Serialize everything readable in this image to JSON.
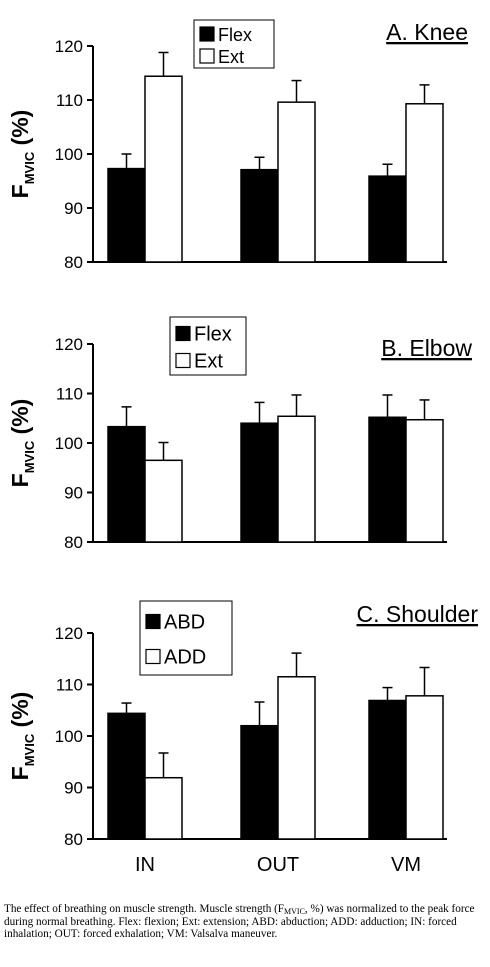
{
  "figure": {
    "colors": {
      "bar_dark": "#000000",
      "bar_light": "#ffffff",
      "axis": "#000000",
      "background": "#ffffff"
    },
    "charts": [
      {
        "type": "bar",
        "title": "A. Knee",
        "ylabel": {
          "main": "F",
          "sub": "MVIC",
          "unit": " (%)"
        },
        "ylim": [
          80,
          120
        ],
        "yticks": [
          80,
          90,
          100,
          110,
          120
        ],
        "categories": [
          "IN",
          "OUT",
          "VM"
        ],
        "show_xticklabels": false,
        "legend_placement": "top-center",
        "grid": false,
        "series": [
          {
            "name": "Flex",
            "color": "#000000",
            "values": [
              97.3,
              97.1,
              95.9
            ],
            "errors": [
              2.7,
              2.3,
              2.2
            ]
          },
          {
            "name": "Ext",
            "color": "#ffffff",
            "values": [
              114.4,
              109.6,
              109.3
            ],
            "errors": [
              4.4,
              4.0,
              3.5
            ]
          }
        ]
      },
      {
        "type": "bar",
        "title": "B. Elbow",
        "ylabel": {
          "main": "F",
          "sub": "MVIC",
          "unit": " (%)"
        },
        "ylim": [
          80,
          120
        ],
        "yticks": [
          80,
          90,
          100,
          110,
          120
        ],
        "categories": [
          "IN",
          "OUT",
          "VM"
        ],
        "show_xticklabels": false,
        "legend_placement": "top-left",
        "grid": false,
        "series": [
          {
            "name": "Flex",
            "color": "#000000",
            "values": [
              103.3,
              104.0,
              105.2
            ],
            "errors": [
              4.0,
              4.2,
              4.5
            ]
          },
          {
            "name": "Ext",
            "color": "#ffffff",
            "values": [
              96.5,
              105.4,
              104.7
            ],
            "errors": [
              3.6,
              4.3,
              4.0
            ]
          }
        ]
      },
      {
        "type": "bar",
        "title": "C. Shoulder",
        "ylabel": {
          "main": "F",
          "sub": "MVIC",
          "unit": " (%)"
        },
        "ylim": [
          80,
          120
        ],
        "yticks": [
          80,
          90,
          100,
          110,
          120
        ],
        "categories": [
          "IN",
          "OUT",
          "VM"
        ],
        "show_xticklabels": true,
        "legend_placement": "top-left",
        "grid": false,
        "series": [
          {
            "name": "ABD",
            "color": "#000000",
            "values": [
              104.4,
              102.0,
              106.9
            ],
            "errors": [
              2.0,
              4.6,
              2.5
            ]
          },
          {
            "name": "ADD",
            "color": "#ffffff",
            "values": [
              91.9,
              111.5,
              107.8
            ],
            "errors": [
              4.8,
              4.6,
              5.5
            ]
          }
        ]
      }
    ]
  },
  "caption": {
    "part1": "The effect of breathing on muscle strength. Muscle strength (F",
    "sub": "MVIC",
    "part2": ", %) was normalized to the peak force during normal breathing. Flex: flexion; Ext: extension; ABD: abduction; ADD: adduction; IN: forced inhalation; OUT: forced exhalation; VM: Valsalva maneuver."
  }
}
